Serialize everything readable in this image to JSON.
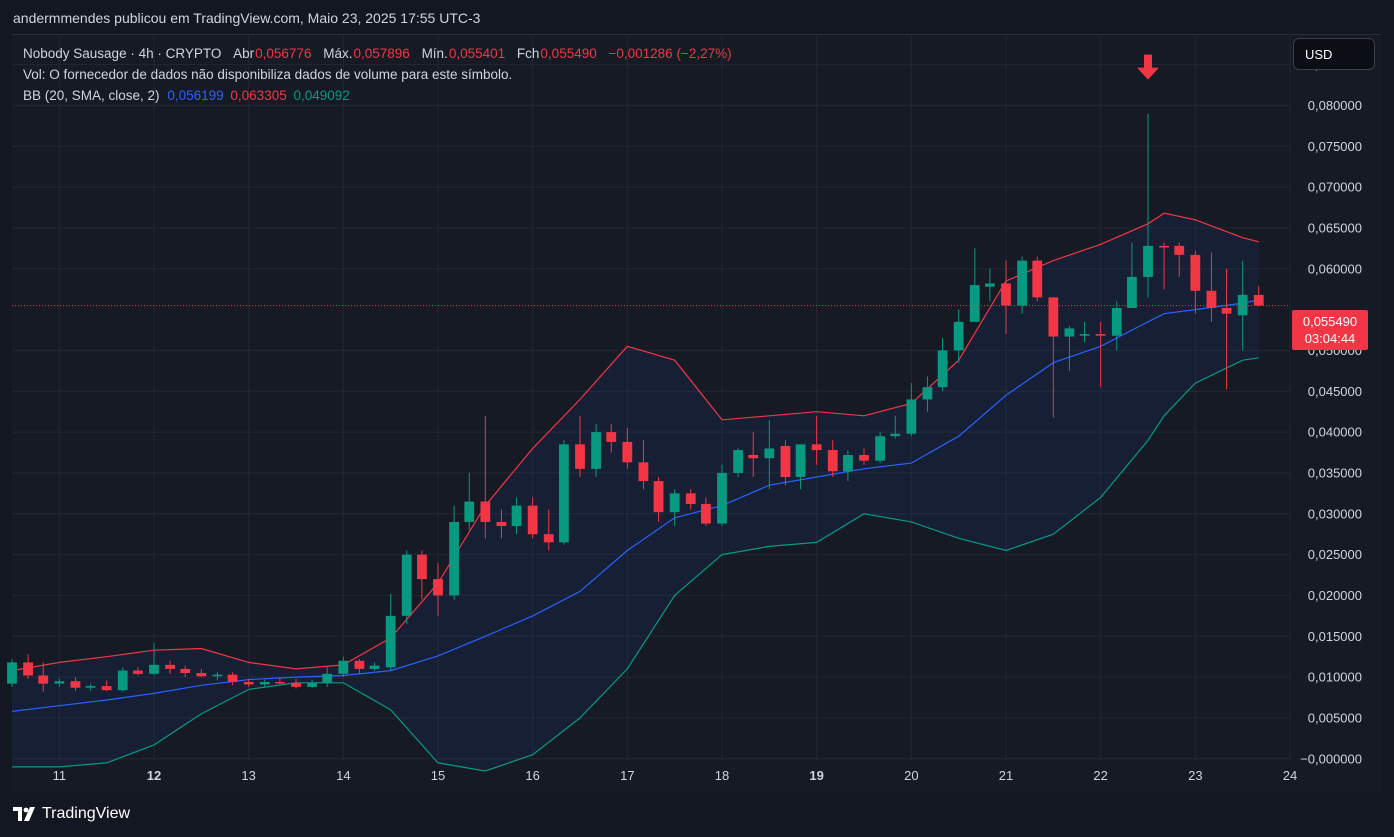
{
  "header": {
    "published_by": "andermmendes publicou em TradingView.com, Maio 23, 2025 17:55 UTC-3"
  },
  "legend": {
    "symbol": "Nobody Sausage · 4h · CRYPTO",
    "open_label": "Abr",
    "open": "0,056776",
    "high_label": "Máx.",
    "high": "0,057896",
    "low_label": "Mín.",
    "low": "0,055401",
    "close_label": "Fch",
    "close": "0,055490",
    "change": "−0,001286 (−2,27%)",
    "volume_note": "Vol: O fornecedor de dados não disponibiliza dados de volume para este símbolo.",
    "bb_label": "BB (20, SMA, close, 2)",
    "bb_basis": "0,056199",
    "bb_upper": "0,063305",
    "bb_lower": "0,049092"
  },
  "currency_button": "USD",
  "last_price": {
    "value": "0,055490",
    "countdown": "03:04:44"
  },
  "branding": "TradingView",
  "colors": {
    "up": "#089981",
    "down": "#f23645",
    "bb_upper": "#f23645",
    "bb_basis": "#2962ff",
    "bb_lower": "#089981",
    "background": "#131722"
  },
  "chart_data": {
    "type": "candlestick",
    "interval": "4h",
    "x_axis": {
      "unit": "day of May 2025",
      "ticks": [
        "11",
        "12",
        "13",
        "14",
        "15",
        "16",
        "17",
        "18",
        "19",
        "20",
        "21",
        "22",
        "23",
        "24"
      ],
      "range": [
        10.5,
        24
      ]
    },
    "y_axis": {
      "ticks": [
        "0,085000",
        "0,080000",
        "0,075000",
        "0,070000",
        "0,065000",
        "0,060000",
        "0,050000",
        "0,045000",
        "0,040000",
        "0,035000",
        "0,030000",
        "0,025000",
        "0,020000",
        "0,015000",
        "0,010000",
        "0,005000",
        "−0,000000"
      ],
      "range": [
        -0.00015,
        0.0885
      ]
    },
    "annotations": [
      {
        "type": "arrow-down",
        "x": 22.5,
        "y": 0.0845
      }
    ],
    "candles": [
      {
        "x": 10.5,
        "o": 0.0092,
        "h": 0.0122,
        "l": 0.0088,
        "c": 0.0118
      },
      {
        "x": 10.67,
        "o": 0.0118,
        "h": 0.0128,
        "l": 0.0098,
        "c": 0.0102
      },
      {
        "x": 10.83,
        "o": 0.0102,
        "h": 0.0118,
        "l": 0.0082,
        "c": 0.0092
      },
      {
        "x": 11.0,
        "o": 0.0092,
        "h": 0.0098,
        "l": 0.0088,
        "c": 0.0095
      },
      {
        "x": 11.17,
        "o": 0.0095,
        "h": 0.01,
        "l": 0.0083,
        "c": 0.0087
      },
      {
        "x": 11.33,
        "o": 0.0087,
        "h": 0.0092,
        "l": 0.0083,
        "c": 0.0089
      },
      {
        "x": 11.5,
        "o": 0.0089,
        "h": 0.0096,
        "l": 0.0083,
        "c": 0.0084
      },
      {
        "x": 11.67,
        "o": 0.0084,
        "h": 0.0112,
        "l": 0.0082,
        "c": 0.0108
      },
      {
        "x": 11.83,
        "o": 0.0108,
        "h": 0.0112,
        "l": 0.0102,
        "c": 0.0104
      },
      {
        "x": 12.0,
        "o": 0.0104,
        "h": 0.0142,
        "l": 0.0102,
        "c": 0.0115
      },
      {
        "x": 12.17,
        "o": 0.0115,
        "h": 0.012,
        "l": 0.0104,
        "c": 0.011
      },
      {
        "x": 12.33,
        "o": 0.011,
        "h": 0.0114,
        "l": 0.01,
        "c": 0.0105
      },
      {
        "x": 12.5,
        "o": 0.0105,
        "h": 0.011,
        "l": 0.01,
        "c": 0.0101
      },
      {
        "x": 12.67,
        "o": 0.0101,
        "h": 0.0106,
        "l": 0.0096,
        "c": 0.0103
      },
      {
        "x": 12.83,
        "o": 0.0103,
        "h": 0.0106,
        "l": 0.009,
        "c": 0.0094
      },
      {
        "x": 13.0,
        "o": 0.0094,
        "h": 0.0098,
        "l": 0.0088,
        "c": 0.0091
      },
      {
        "x": 13.17,
        "o": 0.0091,
        "h": 0.0097,
        "l": 0.0088,
        "c": 0.0094
      },
      {
        "x": 13.33,
        "o": 0.0094,
        "h": 0.0099,
        "l": 0.009,
        "c": 0.0093
      },
      {
        "x": 13.5,
        "o": 0.0093,
        "h": 0.0098,
        "l": 0.0086,
        "c": 0.0088
      },
      {
        "x": 13.67,
        "o": 0.0088,
        "h": 0.0097,
        "l": 0.0087,
        "c": 0.0093
      },
      {
        "x": 13.83,
        "o": 0.0093,
        "h": 0.0112,
        "l": 0.0088,
        "c": 0.0104
      },
      {
        "x": 14.0,
        "o": 0.0104,
        "h": 0.0125,
        "l": 0.01,
        "c": 0.012
      },
      {
        "x": 14.17,
        "o": 0.012,
        "h": 0.0122,
        "l": 0.0104,
        "c": 0.011
      },
      {
        "x": 14.33,
        "o": 0.011,
        "h": 0.0118,
        "l": 0.0108,
        "c": 0.0114
      },
      {
        "x": 14.5,
        "o": 0.0112,
        "h": 0.0202,
        "l": 0.0108,
        "c": 0.0175
      },
      {
        "x": 14.67,
        "o": 0.0175,
        "h": 0.0255,
        "l": 0.0165,
        "c": 0.025
      },
      {
        "x": 14.83,
        "o": 0.025,
        "h": 0.0255,
        "l": 0.0195,
        "c": 0.022
      },
      {
        "x": 15.0,
        "o": 0.022,
        "h": 0.024,
        "l": 0.0175,
        "c": 0.02
      },
      {
        "x": 15.17,
        "o": 0.02,
        "h": 0.031,
        "l": 0.0195,
        "c": 0.029
      },
      {
        "x": 15.33,
        "o": 0.029,
        "h": 0.035,
        "l": 0.028,
        "c": 0.0315
      },
      {
        "x": 15.5,
        "o": 0.0315,
        "h": 0.042,
        "l": 0.027,
        "c": 0.029
      },
      {
        "x": 15.67,
        "o": 0.029,
        "h": 0.0305,
        "l": 0.027,
        "c": 0.0285
      },
      {
        "x": 15.83,
        "o": 0.0285,
        "h": 0.032,
        "l": 0.0275,
        "c": 0.031
      },
      {
        "x": 16.0,
        "o": 0.031,
        "h": 0.032,
        "l": 0.027,
        "c": 0.0275
      },
      {
        "x": 16.17,
        "o": 0.0275,
        "h": 0.0305,
        "l": 0.0255,
        "c": 0.0265
      },
      {
        "x": 16.33,
        "o": 0.0265,
        "h": 0.039,
        "l": 0.0262,
        "c": 0.0385
      },
      {
        "x": 16.5,
        "o": 0.0385,
        "h": 0.042,
        "l": 0.0345,
        "c": 0.0355
      },
      {
        "x": 16.67,
        "o": 0.0355,
        "h": 0.041,
        "l": 0.0345,
        "c": 0.04
      },
      {
        "x": 16.83,
        "o": 0.04,
        "h": 0.041,
        "l": 0.0375,
        "c": 0.0388
      },
      {
        "x": 17.0,
        "o": 0.0388,
        "h": 0.0405,
        "l": 0.0355,
        "c": 0.0363
      },
      {
        "x": 17.17,
        "o": 0.0363,
        "h": 0.039,
        "l": 0.033,
        "c": 0.034
      },
      {
        "x": 17.33,
        "o": 0.034,
        "h": 0.0345,
        "l": 0.029,
        "c": 0.0302
      },
      {
        "x": 17.5,
        "o": 0.0302,
        "h": 0.033,
        "l": 0.0285,
        "c": 0.0325
      },
      {
        "x": 17.67,
        "o": 0.0325,
        "h": 0.033,
        "l": 0.0305,
        "c": 0.0312
      },
      {
        "x": 17.83,
        "o": 0.0312,
        "h": 0.032,
        "l": 0.0285,
        "c": 0.0288
      },
      {
        "x": 18.0,
        "o": 0.0288,
        "h": 0.036,
        "l": 0.0285,
        "c": 0.035
      },
      {
        "x": 18.17,
        "o": 0.035,
        "h": 0.038,
        "l": 0.0345,
        "c": 0.0378
      },
      {
        "x": 18.33,
        "o": 0.0372,
        "h": 0.04,
        "l": 0.0345,
        "c": 0.0368
      },
      {
        "x": 18.5,
        "o": 0.0368,
        "h": 0.0415,
        "l": 0.033,
        "c": 0.038
      },
      {
        "x": 18.67,
        "o": 0.0383,
        "h": 0.039,
        "l": 0.0335,
        "c": 0.0345
      },
      {
        "x": 18.83,
        "o": 0.0345,
        "h": 0.0385,
        "l": 0.033,
        "c": 0.0385
      },
      {
        "x": 19.0,
        "o": 0.0385,
        "h": 0.042,
        "l": 0.036,
        "c": 0.0378
      },
      {
        "x": 19.17,
        "o": 0.0378,
        "h": 0.039,
        "l": 0.0345,
        "c": 0.0352
      },
      {
        "x": 19.33,
        "o": 0.0352,
        "h": 0.0378,
        "l": 0.034,
        "c": 0.0372
      },
      {
        "x": 19.5,
        "o": 0.0372,
        "h": 0.038,
        "l": 0.036,
        "c": 0.0365
      },
      {
        "x": 19.67,
        "o": 0.0365,
        "h": 0.04,
        "l": 0.0362,
        "c": 0.0395
      },
      {
        "x": 19.83,
        "o": 0.0395,
        "h": 0.042,
        "l": 0.0392,
        "c": 0.0398
      },
      {
        "x": 20.0,
        "o": 0.0398,
        "h": 0.046,
        "l": 0.0395,
        "c": 0.044
      },
      {
        "x": 20.17,
        "o": 0.044,
        "h": 0.0468,
        "l": 0.0425,
        "c": 0.0455
      },
      {
        "x": 20.33,
        "o": 0.0455,
        "h": 0.0515,
        "l": 0.045,
        "c": 0.05
      },
      {
        "x": 20.5,
        "o": 0.05,
        "h": 0.055,
        "l": 0.0485,
        "c": 0.0535
      },
      {
        "x": 20.67,
        "o": 0.0535,
        "h": 0.0625,
        "l": 0.0535,
        "c": 0.058
      },
      {
        "x": 20.83,
        "o": 0.0578,
        "h": 0.06,
        "l": 0.056,
        "c": 0.0582
      },
      {
        "x": 21.0,
        "o": 0.0582,
        "h": 0.061,
        "l": 0.052,
        "c": 0.0555
      },
      {
        "x": 21.17,
        "o": 0.0555,
        "h": 0.0615,
        "l": 0.0545,
        "c": 0.061
      },
      {
        "x": 21.33,
        "o": 0.061,
        "h": 0.0615,
        "l": 0.056,
        "c": 0.0565
      },
      {
        "x": 21.5,
        "o": 0.0565,
        "h": 0.0565,
        "l": 0.0418,
        "c": 0.0517
      },
      {
        "x": 21.67,
        "o": 0.0517,
        "h": 0.053,
        "l": 0.0475,
        "c": 0.0527
      },
      {
        "x": 21.83,
        "o": 0.0518,
        "h": 0.0535,
        "l": 0.051,
        "c": 0.052
      },
      {
        "x": 22.0,
        "o": 0.052,
        "h": 0.0535,
        "l": 0.0455,
        "c": 0.0518
      },
      {
        "x": 22.17,
        "o": 0.0518,
        "h": 0.056,
        "l": 0.05,
        "c": 0.0552
      },
      {
        "x": 22.33,
        "o": 0.0552,
        "h": 0.0632,
        "l": 0.0552,
        "c": 0.059
      },
      {
        "x": 22.5,
        "o": 0.059,
        "h": 0.079,
        "l": 0.0565,
        "c": 0.0628
      },
      {
        "x": 22.67,
        "o": 0.0628,
        "h": 0.0632,
        "l": 0.0575,
        "c": 0.0626
      },
      {
        "x": 22.83,
        "o": 0.0628,
        "h": 0.0632,
        "l": 0.059,
        "c": 0.0617
      },
      {
        "x": 23.0,
        "o": 0.0617,
        "h": 0.0622,
        "l": 0.0545,
        "c": 0.0573
      },
      {
        "x": 23.17,
        "o": 0.0573,
        "h": 0.062,
        "l": 0.0535,
        "c": 0.0552
      },
      {
        "x": 23.33,
        "o": 0.0552,
        "h": 0.06,
        "l": 0.0452,
        "c": 0.0545
      },
      {
        "x": 23.5,
        "o": 0.0543,
        "h": 0.061,
        "l": 0.05,
        "c": 0.0568
      },
      {
        "x": 23.67,
        "o": 0.0568,
        "h": 0.0579,
        "l": 0.0554,
        "c": 0.0555
      }
    ],
    "bollinger": {
      "x": [
        10.5,
        11.0,
        11.5,
        12.0,
        12.5,
        13.0,
        13.5,
        14.0,
        14.5,
        15.0,
        15.5,
        16.0,
        16.5,
        17.0,
        17.5,
        18.0,
        18.5,
        19.0,
        19.5,
        20.0,
        20.5,
        21.0,
        21.5,
        22.0,
        22.5,
        22.67,
        23.0,
        23.5,
        23.67
      ],
      "upper": [
        0.0108,
        0.0118,
        0.0125,
        0.0133,
        0.0135,
        0.0118,
        0.011,
        0.0115,
        0.0148,
        0.0215,
        0.031,
        0.038,
        0.044,
        0.0505,
        0.0488,
        0.0415,
        0.042,
        0.0425,
        0.042,
        0.0435,
        0.0488,
        0.0585,
        0.061,
        0.063,
        0.0655,
        0.0668,
        0.066,
        0.0638,
        0.0633
      ],
      "basis": [
        0.0058,
        0.0065,
        0.0072,
        0.008,
        0.009,
        0.0097,
        0.01,
        0.0102,
        0.0108,
        0.0126,
        0.015,
        0.0175,
        0.0205,
        0.0255,
        0.0295,
        0.031,
        0.0335,
        0.0345,
        0.0355,
        0.0362,
        0.0395,
        0.0445,
        0.0485,
        0.0505,
        0.0535,
        0.0545,
        0.055,
        0.0558,
        0.0562
      ],
      "lower": [
        -0.001,
        -0.001,
        -0.0005,
        0.0017,
        0.0055,
        0.0085,
        0.0093,
        0.0093,
        0.006,
        -0.0005,
        -0.0015,
        0.0005,
        0.005,
        0.011,
        0.02,
        0.025,
        0.026,
        0.0265,
        0.03,
        0.029,
        0.027,
        0.0255,
        0.0275,
        0.032,
        0.039,
        0.042,
        0.046,
        0.0488,
        0.0491
      ]
    }
  }
}
